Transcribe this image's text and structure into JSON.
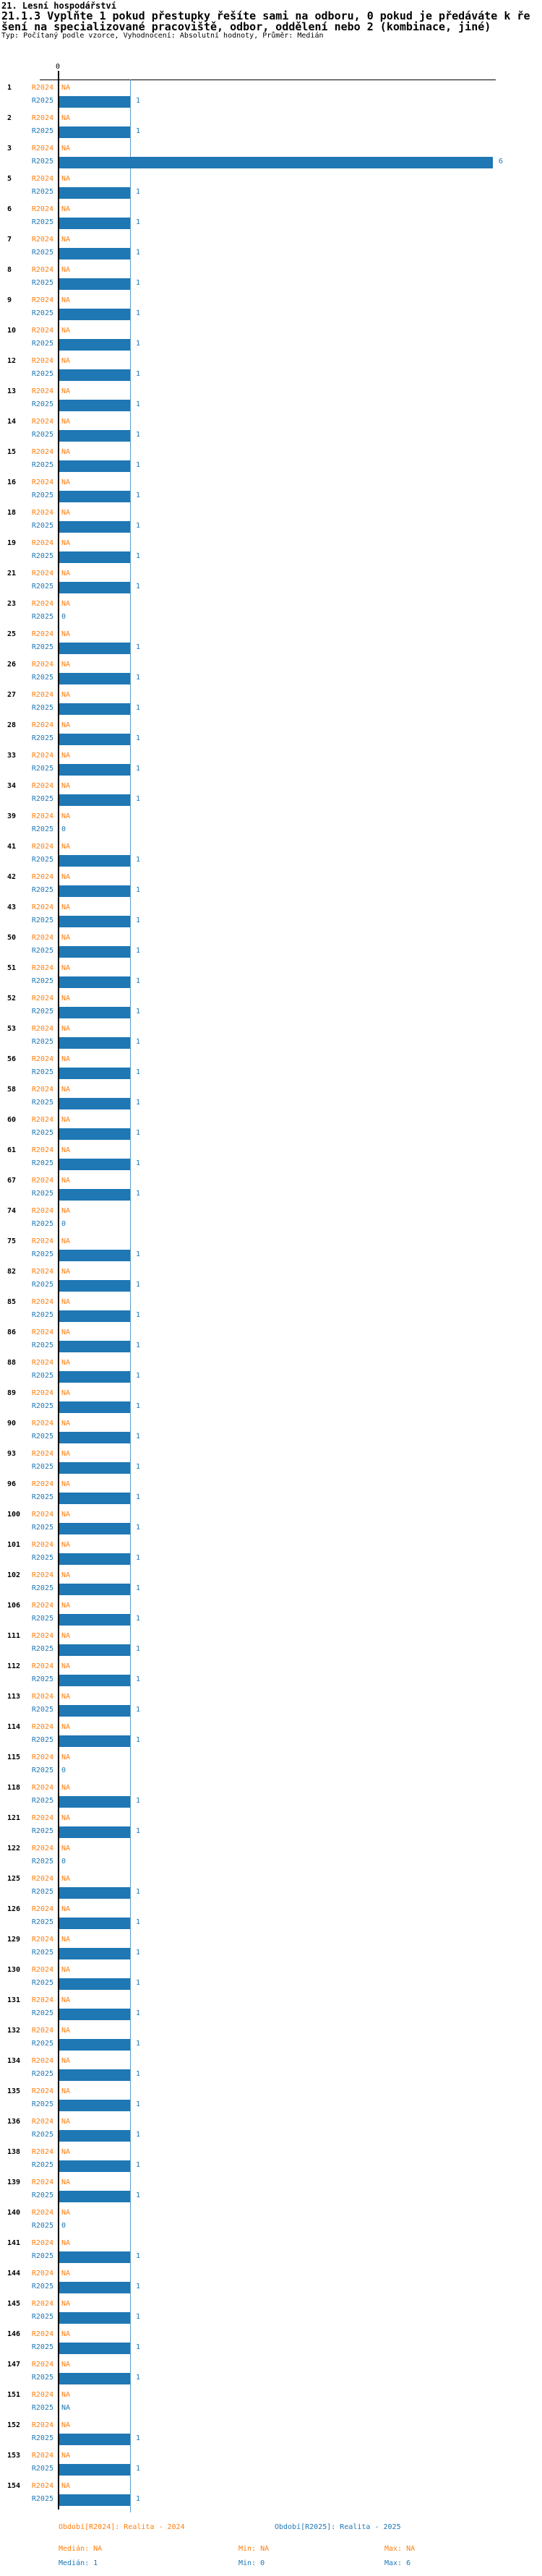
{
  "header": {
    "title": "21. Lesní hospodářství",
    "subtitle_line1": "21.1.3 Vyplňte 1 pokud přestupky řešíte sami na odboru, 0 pokud je předáváte k ře",
    "subtitle_line2": "šení na specializované pracoviště, odbor, oddělení nebo 2 (kombinace, jiné)",
    "meta": "Typ: Počítaný podle vzorce, Vyhodnocení: Absolutní hodnoty, Průměr: Medián"
  },
  "colors": {
    "r2024": "#ff7f0e",
    "r2025": "#1f77b4",
    "bar": "#1f77b4",
    "median_line": "#5b9ec9",
    "axis": "#000000"
  },
  "chart_data": {
    "type": "bar",
    "orientation": "horizontal",
    "title": "21.1.3 Vyplňte 1 pokud přestupky řešíte sami na odboru, 0 pokud je předáváte k řešení na specializované pracoviště, odbor, oddělení nebo 2 (kombinace, jiné)",
    "xlabel": "",
    "ylabel": "",
    "xlim": [
      0,
      6
    ],
    "zero_tick_label": "0",
    "grid": false,
    "median_reference_line": 1,
    "series_names": [
      "R2024",
      "R2025"
    ],
    "na_text": "NA",
    "groups": [
      {
        "label": "1",
        "R2024": "NA",
        "R2025": 1
      },
      {
        "label": "2",
        "R2024": "NA",
        "R2025": 1
      },
      {
        "label": "3",
        "R2024": "NA",
        "R2025": 6
      },
      {
        "label": "5",
        "R2024": "NA",
        "R2025": 1
      },
      {
        "label": "6",
        "R2024": "NA",
        "R2025": 1
      },
      {
        "label": "7",
        "R2024": "NA",
        "R2025": 1
      },
      {
        "label": "8",
        "R2024": "NA",
        "R2025": 1
      },
      {
        "label": "9",
        "R2024": "NA",
        "R2025": 1
      },
      {
        "label": "10",
        "R2024": "NA",
        "R2025": 1
      },
      {
        "label": "12",
        "R2024": "NA",
        "R2025": 1
      },
      {
        "label": "13",
        "R2024": "NA",
        "R2025": 1
      },
      {
        "label": "14",
        "R2024": "NA",
        "R2025": 1
      },
      {
        "label": "15",
        "R2024": "NA",
        "R2025": 1
      },
      {
        "label": "16",
        "R2024": "NA",
        "R2025": 1
      },
      {
        "label": "18",
        "R2024": "NA",
        "R2025": 1
      },
      {
        "label": "19",
        "R2024": "NA",
        "R2025": 1
      },
      {
        "label": "21",
        "R2024": "NA",
        "R2025": 1
      },
      {
        "label": "23",
        "R2024": "NA",
        "R2025": 0
      },
      {
        "label": "25",
        "R2024": "NA",
        "R2025": 1
      },
      {
        "label": "26",
        "R2024": "NA",
        "R2025": 1
      },
      {
        "label": "27",
        "R2024": "NA",
        "R2025": 1
      },
      {
        "label": "28",
        "R2024": "NA",
        "R2025": 1
      },
      {
        "label": "33",
        "R2024": "NA",
        "R2025": 1
      },
      {
        "label": "34",
        "R2024": "NA",
        "R2025": 1
      },
      {
        "label": "39",
        "R2024": "NA",
        "R2025": 0
      },
      {
        "label": "41",
        "R2024": "NA",
        "R2025": 1
      },
      {
        "label": "42",
        "R2024": "NA",
        "R2025": 1
      },
      {
        "label": "43",
        "R2024": "NA",
        "R2025": 1
      },
      {
        "label": "50",
        "R2024": "NA",
        "R2025": 1
      },
      {
        "label": "51",
        "R2024": "NA",
        "R2025": 1
      },
      {
        "label": "52",
        "R2024": "NA",
        "R2025": 1
      },
      {
        "label": "53",
        "R2024": "NA",
        "R2025": 1
      },
      {
        "label": "56",
        "R2024": "NA",
        "R2025": 1
      },
      {
        "label": "58",
        "R2024": "NA",
        "R2025": 1
      },
      {
        "label": "60",
        "R2024": "NA",
        "R2025": 1
      },
      {
        "label": "61",
        "R2024": "NA",
        "R2025": 1
      },
      {
        "label": "67",
        "R2024": "NA",
        "R2025": 1
      },
      {
        "label": "74",
        "R2024": "NA",
        "R2025": 0
      },
      {
        "label": "75",
        "R2024": "NA",
        "R2025": 1
      },
      {
        "label": "82",
        "R2024": "NA",
        "R2025": 1
      },
      {
        "label": "85",
        "R2024": "NA",
        "R2025": 1
      },
      {
        "label": "86",
        "R2024": "NA",
        "R2025": 1
      },
      {
        "label": "88",
        "R2024": "NA",
        "R2025": 1
      },
      {
        "label": "89",
        "R2024": "NA",
        "R2025": 1
      },
      {
        "label": "90",
        "R2024": "NA",
        "R2025": 1
      },
      {
        "label": "93",
        "R2024": "NA",
        "R2025": 1
      },
      {
        "label": "96",
        "R2024": "NA",
        "R2025": 1
      },
      {
        "label": "100",
        "R2024": "NA",
        "R2025": 1
      },
      {
        "label": "101",
        "R2024": "NA",
        "R2025": 1
      },
      {
        "label": "102",
        "R2024": "NA",
        "R2025": 1
      },
      {
        "label": "106",
        "R2024": "NA",
        "R2025": 1
      },
      {
        "label": "111",
        "R2024": "NA",
        "R2025": 1
      },
      {
        "label": "112",
        "R2024": "NA",
        "R2025": 1
      },
      {
        "label": "113",
        "R2024": "NA",
        "R2025": 1
      },
      {
        "label": "114",
        "R2024": "NA",
        "R2025": 1
      },
      {
        "label": "115",
        "R2024": "NA",
        "R2025": 0
      },
      {
        "label": "118",
        "R2024": "NA",
        "R2025": 1
      },
      {
        "label": "121",
        "R2024": "NA",
        "R2025": 1
      },
      {
        "label": "122",
        "R2024": "NA",
        "R2025": 0
      },
      {
        "label": "125",
        "R2024": "NA",
        "R2025": 1
      },
      {
        "label": "126",
        "R2024": "NA",
        "R2025": 1
      },
      {
        "label": "129",
        "R2024": "NA",
        "R2025": 1
      },
      {
        "label": "130",
        "R2024": "NA",
        "R2025": 1
      },
      {
        "label": "131",
        "R2024": "NA",
        "R2025": 1
      },
      {
        "label": "132",
        "R2024": "NA",
        "R2025": 1
      },
      {
        "label": "134",
        "R2024": "NA",
        "R2025": 1
      },
      {
        "label": "135",
        "R2024": "NA",
        "R2025": 1
      },
      {
        "label": "136",
        "R2024": "NA",
        "R2025": 1
      },
      {
        "label": "138",
        "R2024": "NA",
        "R2025": 1
      },
      {
        "label": "139",
        "R2024": "NA",
        "R2025": 1
      },
      {
        "label": "140",
        "R2024": "NA",
        "R2025": 0
      },
      {
        "label": "141",
        "R2024": "NA",
        "R2025": 1
      },
      {
        "label": "144",
        "R2024": "NA",
        "R2025": 1
      },
      {
        "label": "145",
        "R2024": "NA",
        "R2025": 1
      },
      {
        "label": "146",
        "R2024": "NA",
        "R2025": 1
      },
      {
        "label": "147",
        "R2024": "NA",
        "R2025": 1
      },
      {
        "label": "151",
        "R2024": "NA",
        "R2025": "NA"
      },
      {
        "label": "152",
        "R2024": "NA",
        "R2025": 1
      },
      {
        "label": "153",
        "R2024": "NA",
        "R2025": 1
      },
      {
        "label": "154",
        "R2024": "NA",
        "R2025": 1
      }
    ]
  },
  "legend": {
    "r2024_period": "Období[R2024]: Realita - 2024",
    "r2025_period": "Období[R2025]: Realita - 2025",
    "r2024_median": "Medián: NA",
    "r2024_min": "Min: NA",
    "r2024_max": "Max: NA",
    "r2025_median": "Medián: 1",
    "r2025_min": "Min: 0",
    "r2025_max": "Max: 6"
  }
}
